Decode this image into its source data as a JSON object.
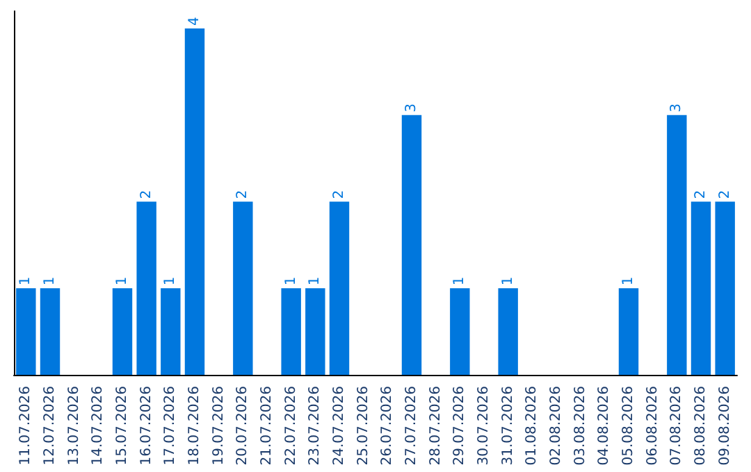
{
  "chart_data": {
    "type": "bar",
    "categories": [
      "11.07.2026",
      "12.07.2026",
      "13.07.2026",
      "14.07.2026",
      "15.07.2026",
      "16.07.2026",
      "17.07.2026",
      "18.07.2026",
      "19.07.2026",
      "20.07.2026",
      "21.07.2026",
      "22.07.2026",
      "23.07.2026",
      "24.07.2026",
      "25.07.2026",
      "26.07.2026",
      "27.07.2026",
      "28.07.2026",
      "29.07.2026",
      "30.07.2026",
      "31.07.2026",
      "01.08.2026",
      "02.08.2026",
      "03.08.2026",
      "04.08.2026",
      "05.08.2026",
      "06.08.2026",
      "07.08.2026",
      "08.08.2026",
      "09.08.2026"
    ],
    "values": [
      1,
      1,
      0,
      0,
      1,
      2,
      1,
      4,
      0,
      2,
      0,
      1,
      1,
      2,
      0,
      0,
      3,
      0,
      1,
      0,
      1,
      0,
      0,
      0,
      0,
      1,
      0,
      3,
      2,
      2
    ],
    "value_labels": [
      "1",
      "1",
      null,
      null,
      "1",
      "2",
      "1",
      "4",
      null,
      "2",
      null,
      "1",
      "1",
      "2",
      null,
      null,
      "3",
      null,
      "1",
      null,
      "1",
      null,
      null,
      null,
      null,
      "1",
      null,
      "3",
      "2",
      "2"
    ],
    "color": "#0077dd",
    "ylim": [
      0,
      4.2
    ],
    "tick_labels": "x"
  }
}
